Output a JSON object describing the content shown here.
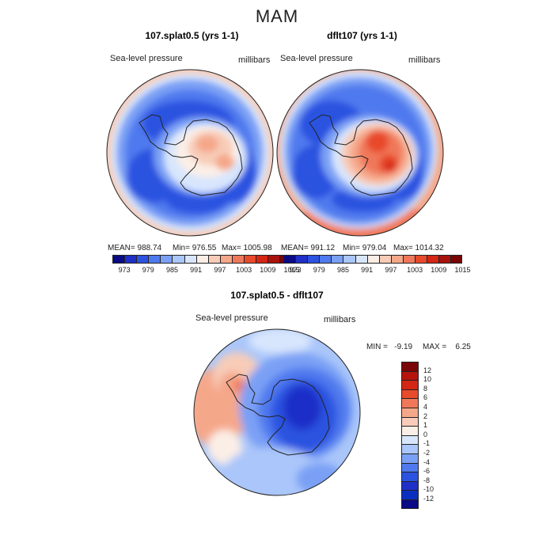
{
  "figure": {
    "title": "MAM",
    "panels": [
      {
        "title": "107.splat0.5 (yrs 1-1)",
        "variable": "Sea-level pressure",
        "units": "millibars",
        "stats": {
          "mean": "MEAN= 988.74",
          "min": "Min= 976.55",
          "max": "Max= 1005.98"
        }
      },
      {
        "title": "dflt107 (yrs 1-1)",
        "variable": "Sea-level pressure",
        "units": "millibars",
        "stats": {
          "mean": "MEAN= 991.12",
          "min": "Min= 979.04",
          "max": "Max= 1014.32"
        }
      },
      {
        "title": "107.splat0.5 - dflt107",
        "variable": "Sea-level pressure",
        "units": "millibars",
        "stats": {
          "min": "MIN =   -9.19",
          "max": "MAX =    6.25"
        }
      }
    ]
  },
  "colorbars": {
    "top": {
      "tick_labels": [
        "973",
        "979",
        "985",
        "991",
        "997",
        "1003",
        "1009",
        "1015"
      ],
      "colors": [
        "#0a0a85",
        "#1f2fc8",
        "#2c52e0",
        "#4f79ee",
        "#7aa0f5",
        "#aac6fa",
        "#d8e6fd",
        "#fbeee6",
        "#f8ccb8",
        "#f5a78a",
        "#f0785a",
        "#e84a2c",
        "#d42614",
        "#a8120c",
        "#7a0507"
      ]
    },
    "diff": {
      "tick_labels": [
        "12",
        "10",
        "8",
        "6",
        "4",
        "2",
        "1",
        "0",
        "-1",
        "-2",
        "-4",
        "-6",
        "-8",
        "-10",
        "-12"
      ],
      "colors": [
        "#7a0507",
        "#b5140d",
        "#d42614",
        "#e84a2c",
        "#f0785a",
        "#f5a78a",
        "#f8ccb8",
        "#fbeee6",
        "#d8e6fd",
        "#aac6fa",
        "#7aa0f5",
        "#4f79ee",
        "#2c52e0",
        "#1f2fc8",
        "#0a2fc0",
        "#0a0a85"
      ]
    }
  },
  "map_legend": {
    "projection": "south polar stereographic",
    "region": "Antarctica / Southern Ocean"
  }
}
